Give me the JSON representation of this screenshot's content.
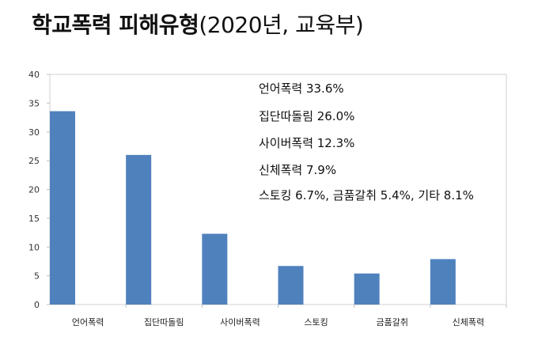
{
  "page": {
    "title_main": "학교폭력 피해유형",
    "title_sub": "(2020년, 교육부)"
  },
  "annotations": [
    "언어폭력 33.6%",
    "집단따돌림 26.0%",
    "사이버폭력 12.3%",
    "신체폭력 7.9%",
    "스토킹 6.7%, 금품갈취 5.4%, 기타 8.1%"
  ],
  "chart_data": {
    "type": "bar",
    "categories": [
      "언어폭력",
      "집단따돌림",
      "사이버폭력",
      "스토킹",
      "금품갈취",
      "신체폭력"
    ],
    "values": [
      33.6,
      26.0,
      12.3,
      6.7,
      5.4,
      7.9
    ],
    "ylim": [
      0,
      40
    ],
    "yticks": [
      0,
      5,
      10,
      15,
      20,
      25,
      30,
      35,
      40
    ],
    "bar_color": "#4f81bd",
    "grid": false
  }
}
